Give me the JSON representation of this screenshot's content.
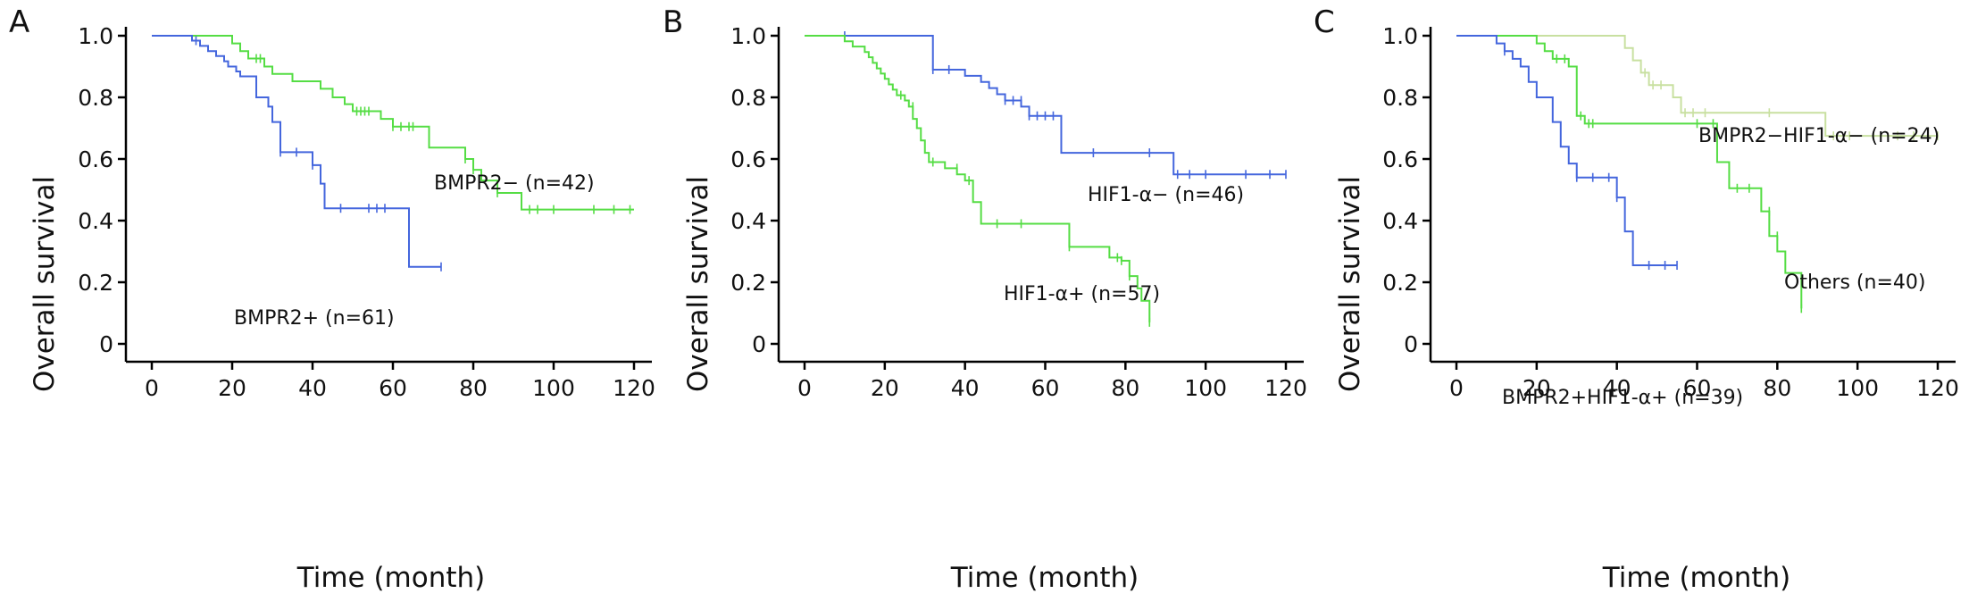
{
  "figure": {
    "panels": [
      "A",
      "B",
      "C"
    ]
  },
  "chart_data": [
    {
      "panel": "A",
      "type": "line",
      "subtype": "kaplan-meier",
      "xlabel": "Time (month)",
      "ylabel": "Overall survival",
      "xlim": [
        0,
        120
      ],
      "ylim": [
        0,
        1.0
      ],
      "xticks": [
        "0",
        "20",
        "40",
        "60",
        "80",
        "100",
        "120"
      ],
      "yticks": [
        "0",
        "0.2",
        "0.4",
        "0.6",
        "0.8",
        "1.0"
      ],
      "grid": false,
      "series": [
        {
          "name": "BMPR2− (n=42)",
          "color": "#55dd44",
          "steps": [
            [
              0,
              1.0
            ],
            [
              20,
              0.975
            ],
            [
              22,
              0.95
            ],
            [
              24,
              0.926
            ],
            [
              28,
              0.9
            ],
            [
              30,
              0.876
            ],
            [
              35,
              0.852
            ],
            [
              42,
              0.828
            ],
            [
              45,
              0.8
            ],
            [
              48,
              0.778
            ],
            [
              50,
              0.755
            ],
            [
              57,
              0.73
            ],
            [
              60,
              0.705
            ],
            [
              69,
              0.637
            ],
            [
              78,
              0.6
            ],
            [
              80,
              0.565
            ],
            [
              82,
              0.53
            ],
            [
              86,
              0.49
            ],
            [
              92,
              0.436
            ],
            [
              120,
              0.436
            ]
          ],
          "censored": [
            [
              26,
              0.926
            ],
            [
              27,
              0.926
            ],
            [
              51,
              0.755
            ],
            [
              52,
              0.755
            ],
            [
              53,
              0.755
            ],
            [
              54,
              0.755
            ],
            [
              60,
              0.705
            ],
            [
              62,
              0.705
            ],
            [
              64,
              0.705
            ],
            [
              65,
              0.705
            ],
            [
              78,
              0.6
            ],
            [
              80,
              0.565
            ],
            [
              86,
              0.49
            ],
            [
              94,
              0.436
            ],
            [
              96,
              0.436
            ],
            [
              100,
              0.436
            ],
            [
              110,
              0.436
            ],
            [
              115,
              0.436
            ],
            [
              119,
              0.436
            ]
          ],
          "label": "BMPR2− (n=42)"
        },
        {
          "name": "BMPR2+ (n=61)",
          "color": "#4466dd",
          "steps": [
            [
              0,
              1.0
            ],
            [
              10,
              0.984
            ],
            [
              12,
              0.967
            ],
            [
              14,
              0.95
            ],
            [
              16,
              0.934
            ],
            [
              18,
              0.917
            ],
            [
              19,
              0.9
            ],
            [
              21,
              0.884
            ],
            [
              22,
              0.868
            ],
            [
              26,
              0.8
            ],
            [
              29,
              0.77
            ],
            [
              30,
              0.72
            ],
            [
              32,
              0.622
            ],
            [
              40,
              0.58
            ],
            [
              42,
              0.52
            ],
            [
              43,
              0.44
            ],
            [
              64,
              0.25
            ],
            [
              72,
              0.25
            ]
          ],
          "censored": [
            [
              11,
              0.984
            ],
            [
              32,
              0.622
            ],
            [
              36,
              0.622
            ],
            [
              40,
              0.58
            ],
            [
              47,
              0.44
            ],
            [
              54,
              0.44
            ],
            [
              56,
              0.44
            ],
            [
              58,
              0.44
            ],
            [
              72,
              0.25
            ]
          ],
          "label": "BMPR2+ (n=61)"
        }
      ]
    },
    {
      "panel": "B",
      "type": "line",
      "subtype": "kaplan-meier",
      "xlabel": "Time (month)",
      "ylabel": "Overall survival",
      "xlim": [
        0,
        120
      ],
      "ylim": [
        0,
        1.0
      ],
      "xticks": [
        "0",
        "20",
        "40",
        "60",
        "80",
        "100",
        "120"
      ],
      "yticks": [
        "0",
        "0.2",
        "0.4",
        "0.6",
        "0.8",
        "1.0"
      ],
      "grid": false,
      "series": [
        {
          "name": "HIF1-α− (n=46)",
          "color": "#4466dd",
          "steps": [
            [
              0,
              1.0
            ],
            [
              32,
              0.89
            ],
            [
              40,
              0.87
            ],
            [
              44,
              0.85
            ],
            [
              46,
              0.83
            ],
            [
              48,
              0.81
            ],
            [
              50,
              0.79
            ],
            [
              54,
              0.77
            ],
            [
              56,
              0.74
            ],
            [
              64,
              0.62
            ],
            [
              92,
              0.55
            ],
            [
              120,
              0.55
            ]
          ],
          "censored": [
            [
              10,
              1.0
            ],
            [
              32,
              0.89
            ],
            [
              36,
              0.89
            ],
            [
              50,
              0.79
            ],
            [
              52,
              0.79
            ],
            [
              54,
              0.79
            ],
            [
              56,
              0.74
            ],
            [
              58,
              0.74
            ],
            [
              60,
              0.74
            ],
            [
              62,
              0.74
            ],
            [
              72,
              0.62
            ],
            [
              86,
              0.62
            ],
            [
              93,
              0.55
            ],
            [
              96,
              0.55
            ],
            [
              100,
              0.55
            ],
            [
              110,
              0.55
            ],
            [
              116,
              0.55
            ],
            [
              120,
              0.55
            ]
          ],
          "label": "HIF1-α− (n=46)"
        },
        {
          "name": "HIF1-α+ (n=57)",
          "color": "#55dd44",
          "steps": [
            [
              0,
              1.0
            ],
            [
              10,
              0.982
            ],
            [
              12,
              0.965
            ],
            [
              15,
              0.947
            ],
            [
              16,
              0.93
            ],
            [
              17,
              0.912
            ],
            [
              18,
              0.894
            ],
            [
              19,
              0.877
            ],
            [
              20,
              0.86
            ],
            [
              21,
              0.842
            ],
            [
              22,
              0.825
            ],
            [
              23,
              0.807
            ],
            [
              25,
              0.79
            ],
            [
              26,
              0.77
            ],
            [
              27,
              0.73
            ],
            [
              28,
              0.7
            ],
            [
              29,
              0.66
            ],
            [
              30,
              0.62
            ],
            [
              31,
              0.59
            ],
            [
              35,
              0.57
            ],
            [
              38,
              0.55
            ],
            [
              40,
              0.53
            ],
            [
              42,
              0.46
            ],
            [
              44,
              0.39
            ],
            [
              66,
              0.315
            ],
            [
              76,
              0.28
            ],
            [
              79,
              0.27
            ],
            [
              81,
              0.22
            ],
            [
              83,
              0.18
            ],
            [
              84,
              0.14
            ],
            [
              86,
              0.07
            ]
          ],
          "censored": [
            [
              24,
              0.807
            ],
            [
              27,
              0.77
            ],
            [
              32,
              0.59
            ],
            [
              38,
              0.57
            ],
            [
              41,
              0.53
            ],
            [
              48,
              0.39
            ],
            [
              54,
              0.39
            ],
            [
              66,
              0.315
            ],
            [
              78,
              0.28
            ],
            [
              79,
              0.27
            ],
            [
              81,
              0.22
            ],
            [
              86,
              0.07
            ]
          ],
          "label": "HIF1-α+ (n=57)"
        }
      ]
    },
    {
      "panel": "C",
      "type": "line",
      "subtype": "kaplan-meier",
      "xlabel": "Time (month)",
      "ylabel": "Overall survival",
      "xlim": [
        0,
        120
      ],
      "ylim": [
        0,
        1.0
      ],
      "xticks": [
        "0",
        "20",
        "40",
        "60",
        "80",
        "100",
        "120"
      ],
      "yticks": [
        "0",
        "0.2",
        "0.4",
        "0.6",
        "0.8",
        "1.0"
      ],
      "grid": false,
      "series": [
        {
          "name": "BMPR2−HIF1-α− (n=24)",
          "color": "#c8e0a0",
          "steps": [
            [
              0,
              1.0
            ],
            [
              42,
              0.96
            ],
            [
              44,
              0.92
            ],
            [
              46,
              0.88
            ],
            [
              48,
              0.84
            ],
            [
              54,
              0.8
            ],
            [
              56,
              0.75
            ],
            [
              92,
              0.675
            ],
            [
              120,
              0.675
            ]
          ],
          "censored": [
            [
              47,
              0.88
            ],
            [
              49,
              0.84
            ],
            [
              51,
              0.84
            ],
            [
              57,
              0.75
            ],
            [
              59,
              0.75
            ],
            [
              62,
              0.75
            ],
            [
              78,
              0.75
            ],
            [
              94,
              0.675
            ],
            [
              98,
              0.675
            ],
            [
              104,
              0.675
            ],
            [
              110,
              0.675
            ],
            [
              114,
              0.675
            ],
            [
              120,
              0.675
            ]
          ],
          "label": "BMPR2−HIF1-α− (n=24)"
        },
        {
          "name": "Others (n=40)",
          "color": "#55dd44",
          "steps": [
            [
              0,
              1.0
            ],
            [
              20,
              0.975
            ],
            [
              22,
              0.95
            ],
            [
              24,
              0.925
            ],
            [
              28,
              0.9
            ],
            [
              30,
              0.74
            ],
            [
              32,
              0.715
            ],
            [
              62,
              0.715
            ],
            [
              65,
              0.59
            ],
            [
              68,
              0.505
            ],
            [
              76,
              0.43
            ],
            [
              78,
              0.35
            ],
            [
              80,
              0.3
            ],
            [
              82,
              0.23
            ],
            [
              86,
              0.115
            ]
          ],
          "censored": [
            [
              25,
              0.925
            ],
            [
              27,
              0.925
            ],
            [
              31,
              0.74
            ],
            [
              33,
              0.715
            ],
            [
              34,
              0.715
            ],
            [
              60,
              0.715
            ],
            [
              64,
              0.715
            ],
            [
              70,
              0.505
            ],
            [
              73,
              0.505
            ],
            [
              78,
              0.43
            ],
            [
              80,
              0.35
            ],
            [
              86,
              0.115
            ]
          ],
          "label": "Others (n=40)"
        },
        {
          "name": "BMPR2+HIF1-α+ (n=39)",
          "color": "#4466dd",
          "steps": [
            [
              0,
              1.0
            ],
            [
              10,
              0.975
            ],
            [
              12,
              0.95
            ],
            [
              14,
              0.925
            ],
            [
              16,
              0.9
            ],
            [
              18,
              0.85
            ],
            [
              20,
              0.8
            ],
            [
              24,
              0.72
            ],
            [
              26,
              0.64
            ],
            [
              28,
              0.585
            ],
            [
              30,
              0.54
            ],
            [
              40,
              0.475
            ],
            [
              42,
              0.365
            ],
            [
              44,
              0.255
            ],
            [
              55,
              0.255
            ]
          ],
          "censored": [
            [
              12,
              0.95
            ],
            [
              30,
              0.54
            ],
            [
              34,
              0.54
            ],
            [
              38,
              0.54
            ],
            [
              40,
              0.475
            ],
            [
              48,
              0.255
            ],
            [
              52,
              0.255
            ],
            [
              55,
              0.255
            ]
          ],
          "label": "BMPR2+HIF1-α+ (n=39)"
        }
      ]
    }
  ]
}
